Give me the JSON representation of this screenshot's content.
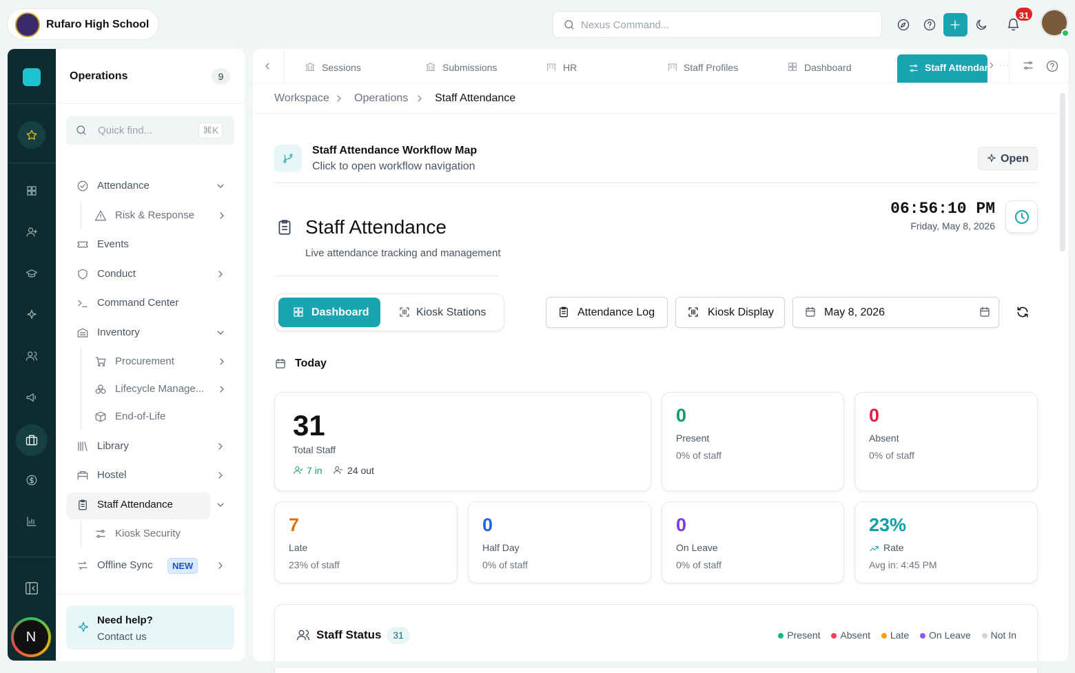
{
  "header": {
    "school_name": "Rufaro High School",
    "search_placeholder": "Nexus Command...",
    "notification_count": 31
  },
  "rail": {
    "avatar_letter": "N"
  },
  "sidebar": {
    "title": "Operations",
    "count": 9,
    "search_placeholder": "Quick find...",
    "shortcut": "⌘K",
    "items": [
      {
        "label": "Attendance",
        "children": [
          {
            "label": "Risk & Response"
          }
        ]
      },
      {
        "label": "Events"
      },
      {
        "label": "Conduct"
      },
      {
        "label": "Command Center"
      },
      {
        "label": "Inventory",
        "children": [
          {
            "label": "Procurement"
          },
          {
            "label": "Lifecycle Manage..."
          },
          {
            "label": "End-of-Life"
          }
        ]
      },
      {
        "label": "Library"
      },
      {
        "label": "Hostel"
      },
      {
        "label": "Staff Attendance",
        "children": [
          {
            "label": "Kiosk Security"
          }
        ]
      },
      {
        "label": "Offline Sync",
        "badge": "NEW"
      }
    ],
    "help": {
      "title": "Need help?",
      "link": "Contact us"
    }
  },
  "tabs": [
    "Sessions",
    "Submissions",
    "HR",
    "Staff Profiles",
    "Dashboard",
    "Staff Attendance"
  ],
  "breadcrumb": [
    "Workspace",
    "Operations",
    "Staff Attendance"
  ],
  "workflow": {
    "title": "Staff Attendance Workflow Map",
    "subtitle": "Click to open workflow navigation",
    "button": "Open"
  },
  "page": {
    "title": "Staff Attendance",
    "subtitle": "Live attendance tracking and management",
    "clock": {
      "time": "06:56:10 PM",
      "date": "Friday, May 8, 2026"
    },
    "view_tabs": [
      "Dashboard",
      "Kiosk Stations"
    ],
    "actions": [
      "Attendance Log",
      "Kiosk Display"
    ],
    "date": "May 8, 2026",
    "section": "Today",
    "total": {
      "value": 31,
      "label": "Total Staff",
      "in": "7 in",
      "out": "24 out"
    },
    "stats": [
      {
        "value": 0,
        "label": "Present",
        "note": "0% of staff"
      },
      {
        "value": 0,
        "label": "Absent",
        "note": "0% of staff"
      },
      {
        "value": 7,
        "label": "Late",
        "note": "23% of staff"
      },
      {
        "value": 0,
        "label": "Half Day",
        "note": "0% of staff"
      },
      {
        "value": 0,
        "label": "On Leave",
        "note": "0% of staff"
      },
      {
        "value": "23%",
        "label": "Rate",
        "note": "Avg in: 4:45 PM"
      }
    ],
    "staff_status": {
      "title": "Staff Status",
      "count": 31,
      "legend": [
        "Present",
        "Absent",
        "Late",
        "On Leave",
        "Not In"
      ]
    }
  }
}
